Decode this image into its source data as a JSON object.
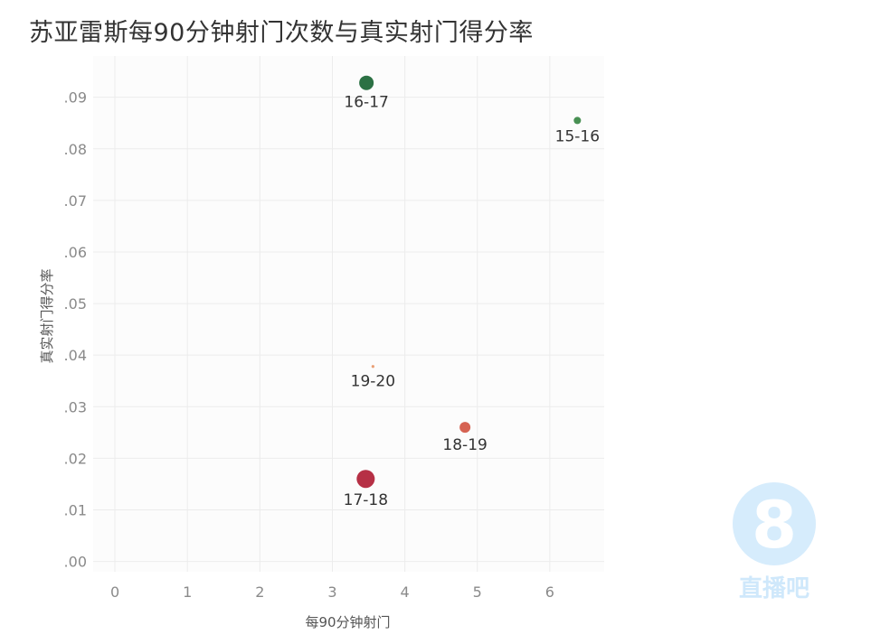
{
  "title": "苏亚雷斯每90分钟射门次数与真实射门得分率",
  "watermark": {
    "glyph": "8",
    "text": "直播吧",
    "color": "#cfe8fb"
  },
  "chart_data": {
    "type": "scatter",
    "xlabel": "每90分钟射门",
    "ylabel": "真实射门得分率",
    "xlim": [
      -0.3,
      6.75
    ],
    "ylim": [
      -0.002,
      0.098
    ],
    "xticks": [
      0,
      1,
      2,
      3,
      4,
      5,
      6
    ],
    "yticks": [
      0.0,
      0.01,
      0.02,
      0.03,
      0.04,
      0.05,
      0.06,
      0.07,
      0.08,
      0.09
    ],
    "ytick_labels": [
      ".00",
      ".01",
      ".02",
      ".03",
      ".04",
      ".05",
      ".06",
      ".07",
      ".08",
      ".09"
    ],
    "grid": true,
    "points": [
      {
        "label": "15-16",
        "x": 6.38,
        "y": 0.0855,
        "size": 4,
        "color": "#3e8a4a"
      },
      {
        "label": "16-17",
        "x": 3.47,
        "y": 0.0928,
        "size": 8,
        "color": "#21693a"
      },
      {
        "label": "17-18",
        "x": 3.46,
        "y": 0.016,
        "size": 10,
        "color": "#b2253b"
      },
      {
        "label": "18-19",
        "x": 4.83,
        "y": 0.026,
        "size": 6,
        "color": "#d45b4a"
      },
      {
        "label": "19-20",
        "x": 3.56,
        "y": 0.0378,
        "size": 1.6,
        "color": "#e89a6e"
      }
    ]
  }
}
